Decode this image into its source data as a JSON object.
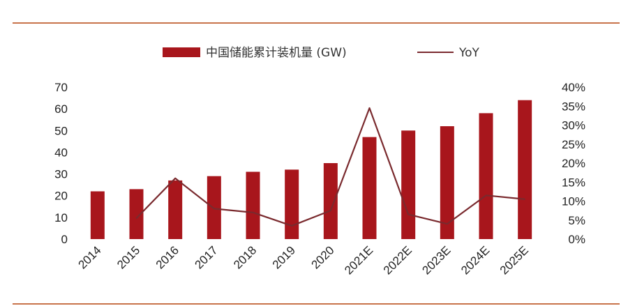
{
  "chart_data": {
    "type": "bar",
    "categories": [
      "2014",
      "2015",
      "2016",
      "2017",
      "2018",
      "2019",
      "2020",
      "2021E",
      "2022E",
      "2023E",
      "2024E",
      "2025E"
    ],
    "series": [
      {
        "name": "中国储能累计装机量 (GW)",
        "type": "bar",
        "axis": "left",
        "values": [
          22,
          23,
          27,
          29,
          31,
          32,
          35,
          47,
          50,
          52,
          58,
          64
        ]
      },
      {
        "name": "YoY",
        "type": "line",
        "axis": "right",
        "values": [
          null,
          5.5,
          16,
          8,
          7,
          3.5,
          7.5,
          34.5,
          6.5,
          4,
          11.5,
          10.5
        ]
      }
    ],
    "left_axis": {
      "ylim": [
        0,
        70
      ],
      "ticks": [
        "0",
        "10",
        "20",
        "30",
        "40",
        "50",
        "60",
        "70"
      ]
    },
    "right_axis": {
      "ylim": [
        0,
        40
      ],
      "ticks": [
        "0%",
        "5%",
        "10%",
        "15%",
        "20%",
        "25%",
        "30%",
        "35%",
        "40%"
      ]
    },
    "legend": "top-center",
    "grid": false,
    "colors": {
      "bar": "#a8161c",
      "line": "#7a2a2e",
      "frame_line": "#c8734a"
    }
  }
}
